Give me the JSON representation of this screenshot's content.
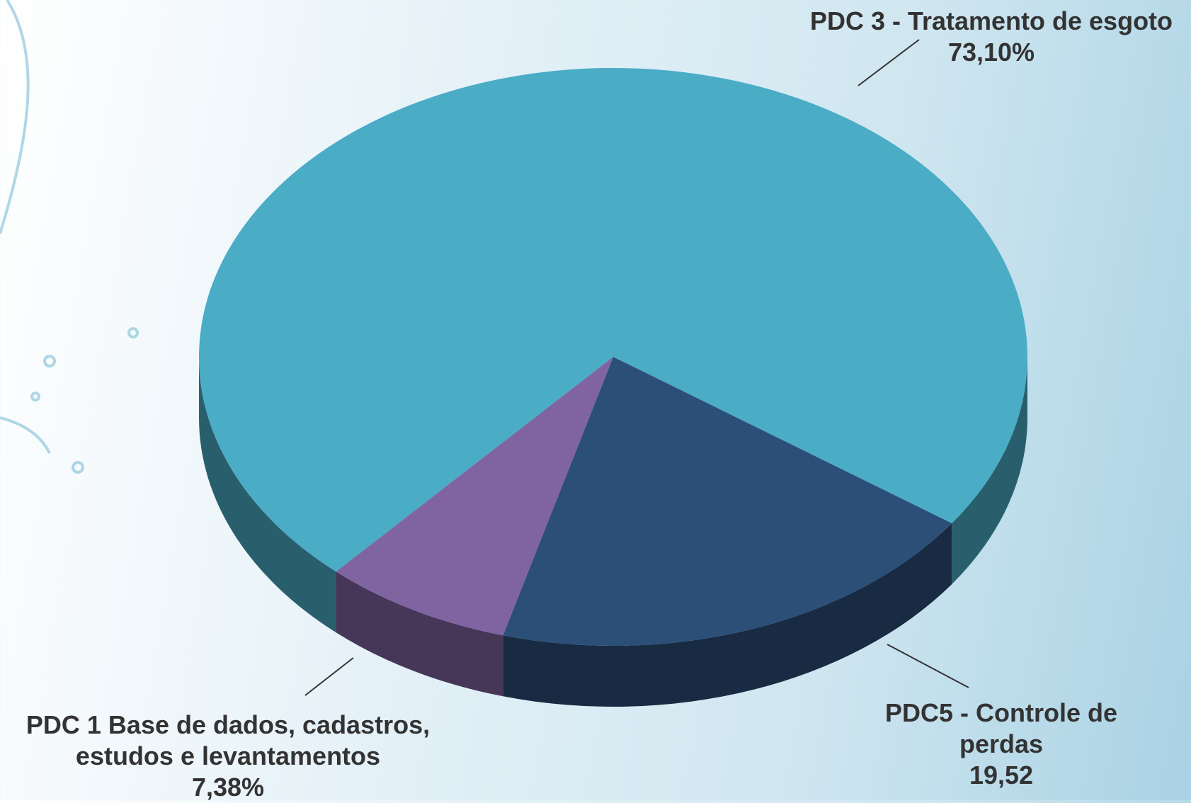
{
  "chart_data": {
    "type": "pie",
    "categories": [
      "PDC 3 - Tratamento de esgoto",
      "PDC5 - Controle de perdas",
      "PDC 1 Base de dados, cadastros, estudos e levantamentos"
    ],
    "values": [
      73.1,
      19.52,
      7.38
    ],
    "value_labels": [
      "73,10%",
      "19,52",
      "7,38%"
    ],
    "colors": [
      "#4bacc6",
      "#2c4f78",
      "#8064a2"
    ],
    "three_d": true
  }
}
